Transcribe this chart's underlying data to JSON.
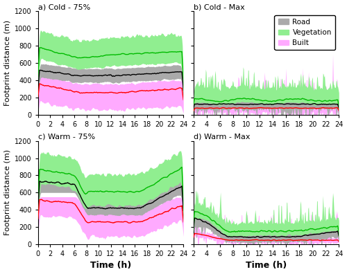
{
  "subplot_titles": [
    "a) Cold - 75%",
    "b) Cold - Max",
    "c) Warm - 75%",
    "d) Warm - Max"
  ],
  "xlabel": "Time (h)",
  "ylabel": "Footprint distance (m)",
  "xlim_left": [
    0,
    24
  ],
  "xlim_right": [
    2,
    24
  ],
  "ylim": [
    0,
    1200
  ],
  "xticks_left": [
    0,
    2,
    4,
    6,
    8,
    10,
    12,
    14,
    16,
    18,
    20,
    22,
    24
  ],
  "xticks_right": [
    2,
    4,
    6,
    8,
    10,
    12,
    14,
    16,
    18,
    20,
    22,
    24
  ],
  "yticks": [
    0,
    200,
    400,
    600,
    800,
    1000,
    1200
  ],
  "legend_labels": [
    "Road",
    "Vegetation",
    "Built"
  ],
  "fill_colors": {
    "road": "#aaaaaa",
    "vegetation": "#90ee90",
    "built": "#ffaaff"
  },
  "line_colors": {
    "road": "#000000",
    "vegetation": "#00bb00",
    "built": "#ff0000"
  },
  "figsize": [
    5.0,
    3.96
  ],
  "dpi": 100
}
